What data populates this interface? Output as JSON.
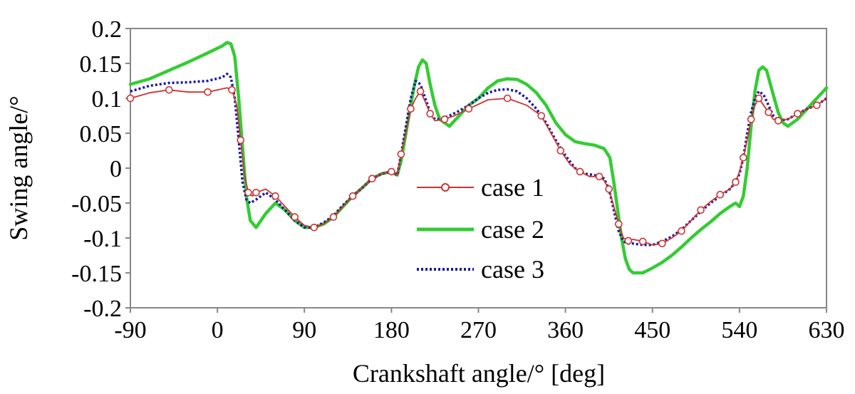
{
  "chart_data": {
    "type": "line",
    "xlabel": "Crankshaft angle/°  [deg]",
    "ylabel": "Swing angle/°",
    "xlim": [
      -90,
      630
    ],
    "ylim": [
      -0.2,
      0.2
    ],
    "xticks": [
      -90,
      0,
      90,
      180,
      270,
      360,
      450,
      540,
      630
    ],
    "xtick_labels": [
      "-90",
      "0",
      "90",
      "180",
      "270",
      "360",
      "450",
      "540",
      "630"
    ],
    "yticks": [
      0.2,
      0.15,
      0.1,
      0.05,
      0,
      -0.05,
      -0.1,
      -0.15,
      -0.2
    ],
    "ytick_labels": [
      "0.2",
      "0.15",
      "0.1",
      "0.05",
      "0",
      "-0.05",
      "-0.1",
      "-0.15",
      "-0.2"
    ],
    "legend_position": "center",
    "series": [
      {
        "name": "case 1",
        "label": "case 1",
        "color": "#cc3333",
        "style": "solid-circle-markers",
        "x": [
          -90,
          -70,
          -50,
          -30,
          -10,
          10,
          15,
          20,
          24,
          28,
          32,
          36,
          40,
          50,
          60,
          70,
          80,
          90,
          100,
          110,
          120,
          130,
          140,
          150,
          160,
          170,
          180,
          186,
          190,
          195,
          200,
          205,
          210,
          215,
          220,
          225,
          235,
          245,
          260,
          280,
          300,
          320,
          335,
          345,
          355,
          365,
          375,
          385,
          395,
          400,
          405,
          410,
          415,
          420,
          425,
          430,
          440,
          450,
          460,
          470,
          480,
          490,
          500,
          510,
          520,
          530,
          536,
          540,
          544,
          548,
          552,
          556,
          560,
          565,
          570,
          575,
          580,
          590,
          600,
          610,
          620,
          630
        ],
        "y": [
          0.1,
          0.108,
          0.112,
          0.109,
          0.109,
          0.115,
          0.112,
          0.09,
          0.04,
          -0.01,
          -0.035,
          -0.04,
          -0.035,
          -0.03,
          -0.04,
          -0.055,
          -0.07,
          -0.082,
          -0.085,
          -0.08,
          -0.07,
          -0.055,
          -0.04,
          -0.028,
          -0.015,
          -0.008,
          -0.005,
          -0.01,
          0.02,
          0.05,
          0.085,
          0.1,
          0.11,
          0.095,
          0.078,
          0.068,
          0.07,
          0.075,
          0.085,
          0.098,
          0.1,
          0.09,
          0.075,
          0.05,
          0.025,
          0.005,
          -0.005,
          -0.012,
          -0.012,
          -0.018,
          -0.03,
          -0.055,
          -0.08,
          -0.1,
          -0.104,
          -0.102,
          -0.105,
          -0.11,
          -0.108,
          -0.1,
          -0.09,
          -0.075,
          -0.06,
          -0.048,
          -0.038,
          -0.03,
          -0.02,
          -0.005,
          0.015,
          0.04,
          0.07,
          0.09,
          0.1,
          0.09,
          0.08,
          0.07,
          0.068,
          0.07,
          0.078,
          0.085,
          0.09,
          0.1
        ]
      },
      {
        "name": "case 2",
        "label": "case 2",
        "color": "#33cc33",
        "style": "solid",
        "x": [
          -90,
          -70,
          -50,
          -30,
          -10,
          5,
          10,
          14,
          18,
          22,
          26,
          30,
          34,
          40,
          50,
          60,
          70,
          80,
          90,
          100,
          110,
          120,
          130,
          140,
          150,
          160,
          170,
          180,
          186,
          190,
          195,
          200,
          204,
          208,
          212,
          216,
          220,
          225,
          230,
          240,
          250,
          260,
          270,
          280,
          290,
          300,
          310,
          320,
          330,
          340,
          350,
          360,
          370,
          380,
          390,
          400,
          406,
          410,
          414,
          418,
          422,
          426,
          430,
          440,
          450,
          460,
          470,
          480,
          490,
          500,
          510,
          520,
          530,
          536,
          540,
          544,
          548,
          552,
          556,
          560,
          564,
          568,
          572,
          576,
          580,
          585,
          590,
          600,
          610,
          620,
          630
        ],
        "y": [
          0.12,
          0.128,
          0.14,
          0.152,
          0.165,
          0.175,
          0.18,
          0.178,
          0.16,
          0.1,
          0.03,
          -0.04,
          -0.075,
          -0.085,
          -0.065,
          -0.05,
          -0.06,
          -0.075,
          -0.085,
          -0.085,
          -0.08,
          -0.07,
          -0.055,
          -0.04,
          -0.028,
          -0.015,
          -0.008,
          -0.005,
          -0.01,
          0.01,
          0.05,
          0.09,
          0.12,
          0.145,
          0.155,
          0.15,
          0.12,
          0.09,
          0.07,
          0.06,
          0.075,
          0.09,
          0.1,
          0.115,
          0.125,
          0.128,
          0.127,
          0.12,
          0.108,
          0.09,
          0.065,
          0.048,
          0.038,
          0.035,
          0.033,
          0.028,
          0.015,
          -0.02,
          -0.06,
          -0.1,
          -0.13,
          -0.145,
          -0.15,
          -0.15,
          -0.143,
          -0.135,
          -0.125,
          -0.113,
          -0.1,
          -0.088,
          -0.077,
          -0.065,
          -0.055,
          -0.05,
          -0.055,
          -0.04,
          0.0,
          0.06,
          0.11,
          0.14,
          0.145,
          0.14,
          0.12,
          0.1,
          0.08,
          0.065,
          0.06,
          0.07,
          0.085,
          0.1,
          0.115
        ]
      },
      {
        "name": "case 3",
        "label": "case 3",
        "color": "#1a1aa0",
        "style": "dotted",
        "x": [
          -90,
          -70,
          -50,
          -30,
          -10,
          5,
          10,
          14,
          18,
          22,
          26,
          30,
          34,
          40,
          50,
          60,
          70,
          80,
          90,
          100,
          110,
          120,
          130,
          140,
          150,
          160,
          170,
          180,
          186,
          190,
          195,
          200,
          205,
          210,
          215,
          220,
          225,
          230,
          240,
          250,
          260,
          270,
          280,
          290,
          300,
          310,
          320,
          330,
          340,
          350,
          360,
          370,
          380,
          390,
          400,
          405,
          410,
          415,
          420,
          425,
          430,
          440,
          450,
          460,
          470,
          480,
          490,
          500,
          510,
          520,
          530,
          536,
          540,
          544,
          548,
          552,
          556,
          560,
          565,
          570,
          575,
          580,
          590,
          600,
          610,
          620,
          630
        ],
        "y": [
          0.11,
          0.118,
          0.122,
          0.123,
          0.125,
          0.13,
          0.135,
          0.13,
          0.1,
          0.04,
          -0.02,
          -0.045,
          -0.05,
          -0.045,
          -0.035,
          -0.045,
          -0.06,
          -0.075,
          -0.085,
          -0.085,
          -0.078,
          -0.068,
          -0.053,
          -0.04,
          -0.028,
          -0.015,
          -0.008,
          -0.005,
          -0.01,
          0.02,
          0.06,
          0.1,
          0.125,
          0.12,
          0.1,
          0.08,
          0.07,
          0.07,
          0.075,
          0.082,
          0.09,
          0.1,
          0.108,
          0.112,
          0.113,
          0.11,
          0.1,
          0.085,
          0.065,
          0.04,
          0.018,
          0.0,
          -0.008,
          -0.01,
          -0.015,
          -0.03,
          -0.06,
          -0.09,
          -0.105,
          -0.108,
          -0.108,
          -0.11,
          -0.11,
          -0.105,
          -0.098,
          -0.088,
          -0.075,
          -0.062,
          -0.05,
          -0.04,
          -0.03,
          -0.02,
          -0.008,
          0.015,
          0.05,
          0.08,
          0.1,
          0.11,
          0.105,
          0.09,
          0.075,
          0.068,
          0.07,
          0.078,
          0.085,
          0.09,
          0.1
        ]
      }
    ]
  }
}
